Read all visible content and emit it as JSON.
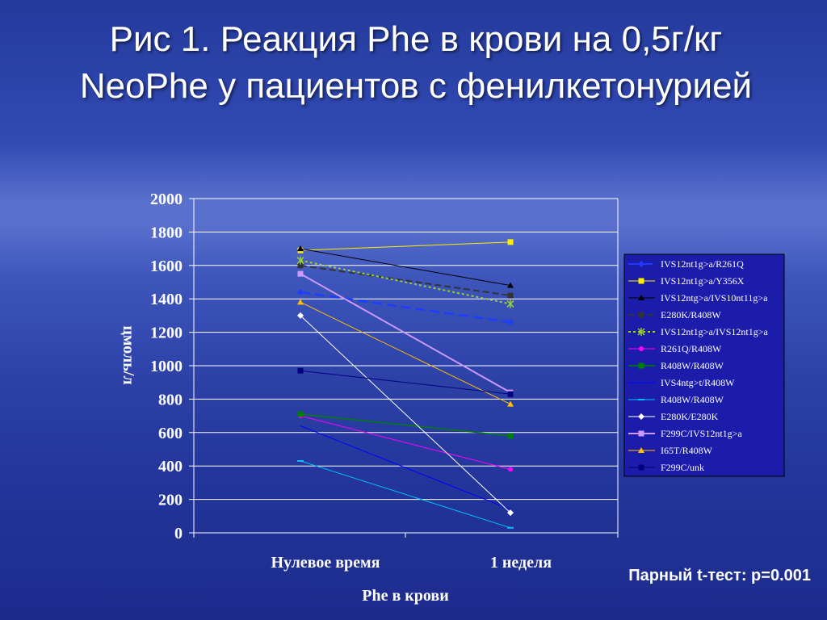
{
  "slide": {
    "title": "Рис 1.  Реакция Phe в крови на 0,5г/кг NeoPhe у пациентов с фенилкетонурией",
    "footnote": "Парный t-тест: p=0.001"
  },
  "colors": {
    "plot_border": "#ffffff",
    "legend_bg": "#1c1caa"
  },
  "chart_data": {
    "type": "line",
    "title": "",
    "xlabel": "Phe в крови",
    "ylabel": "цмоль/л",
    "categories": [
      "Нулевое время",
      "1 неделя"
    ],
    "ylim": [
      0,
      2000
    ],
    "yticks": [
      0,
      200,
      400,
      600,
      800,
      1000,
      1200,
      1400,
      1600,
      1800,
      2000
    ],
    "grid": "horizontal",
    "legend_position": "right",
    "series": [
      {
        "name": "IVS12nt1g>a/R261Q",
        "values": [
          1440,
          1260
        ],
        "color": "#1e3cff",
        "dash": "12,6",
        "width": 2.5,
        "marker": "diamond"
      },
      {
        "name": "IVS12nt1g>a/Y356X",
        "values": [
          1690,
          1740
        ],
        "color": "#ffee00",
        "dash": "",
        "width": 1,
        "marker": "square"
      },
      {
        "name": "IVS12ntg>a/IVS10nt11g>a",
        "values": [
          1700,
          1480
        ],
        "color": "#000000",
        "dash": "",
        "width": 1,
        "marker": "triangle"
      },
      {
        "name": "E280K/R408W",
        "values": [
          1600,
          1420
        ],
        "color": "#333333",
        "dash": "8,4",
        "width": 2,
        "marker": "square"
      },
      {
        "name": "IVS12nt1g>a/IVS12nt1g>a",
        "values": [
          1630,
          1370
        ],
        "color": "#9acd32",
        "dash": "3,3",
        "width": 2,
        "marker": "asterisk"
      },
      {
        "name": "R261Q/R408W",
        "values": [
          700,
          380
        ],
        "color": "#ff00ff",
        "dash": "",
        "width": 1,
        "marker": "circle"
      },
      {
        "name": "R408W/R408W",
        "values": [
          710,
          580
        ],
        "color": "#008000",
        "dash": "",
        "width": 1.5,
        "marker": "square"
      },
      {
        "name": "IVS4ntg>t/R408W",
        "values": [
          640,
          140
        ],
        "color": "#0000ff",
        "dash": "",
        "width": 1,
        "marker": "none"
      },
      {
        "name": "R408W/R408W",
        "values": [
          430,
          30
        ],
        "color": "#00bfff",
        "dash": "",
        "width": 1,
        "marker": "dash"
      },
      {
        "name": "E280K/E280K",
        "values": [
          1300,
          120
        ],
        "color": "#ffffff",
        "dash": "",
        "width": 1,
        "marker": "diamond"
      },
      {
        "name": "F299C/IVS12nt1g>a",
        "values": [
          1550,
          840
        ],
        "color": "#cc99ff",
        "dash": "",
        "width": 2,
        "marker": "square"
      },
      {
        "name": "I65T/R408W",
        "values": [
          1380,
          770
        ],
        "color": "#ffc000",
        "dash": "",
        "width": 1,
        "marker": "triangle"
      },
      {
        "name": "F299C/unk",
        "values": [
          970,
          830
        ],
        "color": "#000080",
        "dash": "",
        "width": 1,
        "marker": "square"
      }
    ]
  }
}
